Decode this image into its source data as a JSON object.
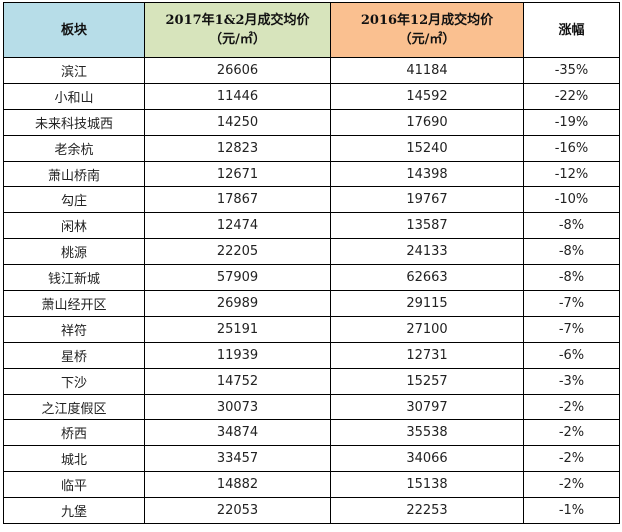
{
  "table": {
    "headers": {
      "block": "板块",
      "price_2017_line1": "2017年1&2月成交均价",
      "price_2017_line2": "（元/㎡）",
      "price_2016_line1": "2016年12月成交均价",
      "price_2016_line2": "（元/㎡）",
      "change": "涨幅"
    },
    "rows": [
      {
        "block": "滨江",
        "price_2017": "26606",
        "price_2016": "41184",
        "change": "-35%"
      },
      {
        "block": "小和山",
        "price_2017": "11446",
        "price_2016": "14592",
        "change": "-22%"
      },
      {
        "block": "未来科技城西",
        "price_2017": "14250",
        "price_2016": "17690",
        "change": "-19%"
      },
      {
        "block": "老余杭",
        "price_2017": "12823",
        "price_2016": "15240",
        "change": "-16%"
      },
      {
        "block": "萧山桥南",
        "price_2017": "12671",
        "price_2016": "14398",
        "change": "-12%"
      },
      {
        "block": "勾庄",
        "price_2017": "17867",
        "price_2016": "19767",
        "change": "-10%"
      },
      {
        "block": "闲林",
        "price_2017": "12474",
        "price_2016": "13587",
        "change": "-8%"
      },
      {
        "block": "桃源",
        "price_2017": "22205",
        "price_2016": "24133",
        "change": "-8%"
      },
      {
        "block": "钱江新城",
        "price_2017": "57909",
        "price_2016": "62663",
        "change": "-8%"
      },
      {
        "block": "萧山经开区",
        "price_2017": "26989",
        "price_2016": "29115",
        "change": "-7%"
      },
      {
        "block": "祥符",
        "price_2017": "25191",
        "price_2016": "27100",
        "change": "-7%"
      },
      {
        "block": "星桥",
        "price_2017": "11939",
        "price_2016": "12731",
        "change": "-6%"
      },
      {
        "block": "下沙",
        "price_2017": "14752",
        "price_2016": "15257",
        "change": "-3%"
      },
      {
        "block": "之江度假区",
        "price_2017": "30073",
        "price_2016": "30797",
        "change": "-2%"
      },
      {
        "block": "桥西",
        "price_2017": "34874",
        "price_2016": "35538",
        "change": "-2%"
      },
      {
        "block": "城北",
        "price_2017": "33457",
        "price_2016": "34066",
        "change": "-2%"
      },
      {
        "block": "临平",
        "price_2017": "14882",
        "price_2016": "15138",
        "change": "-2%"
      },
      {
        "block": "九堡",
        "price_2017": "22053",
        "price_2016": "22253",
        "change": "-1%"
      }
    ]
  },
  "colors": {
    "header_block_bg": "#b7dde8",
    "header_2017_bg": "#d7e4bc",
    "header_2016_bg": "#fac090",
    "change_text": "#e46c0a"
  }
}
